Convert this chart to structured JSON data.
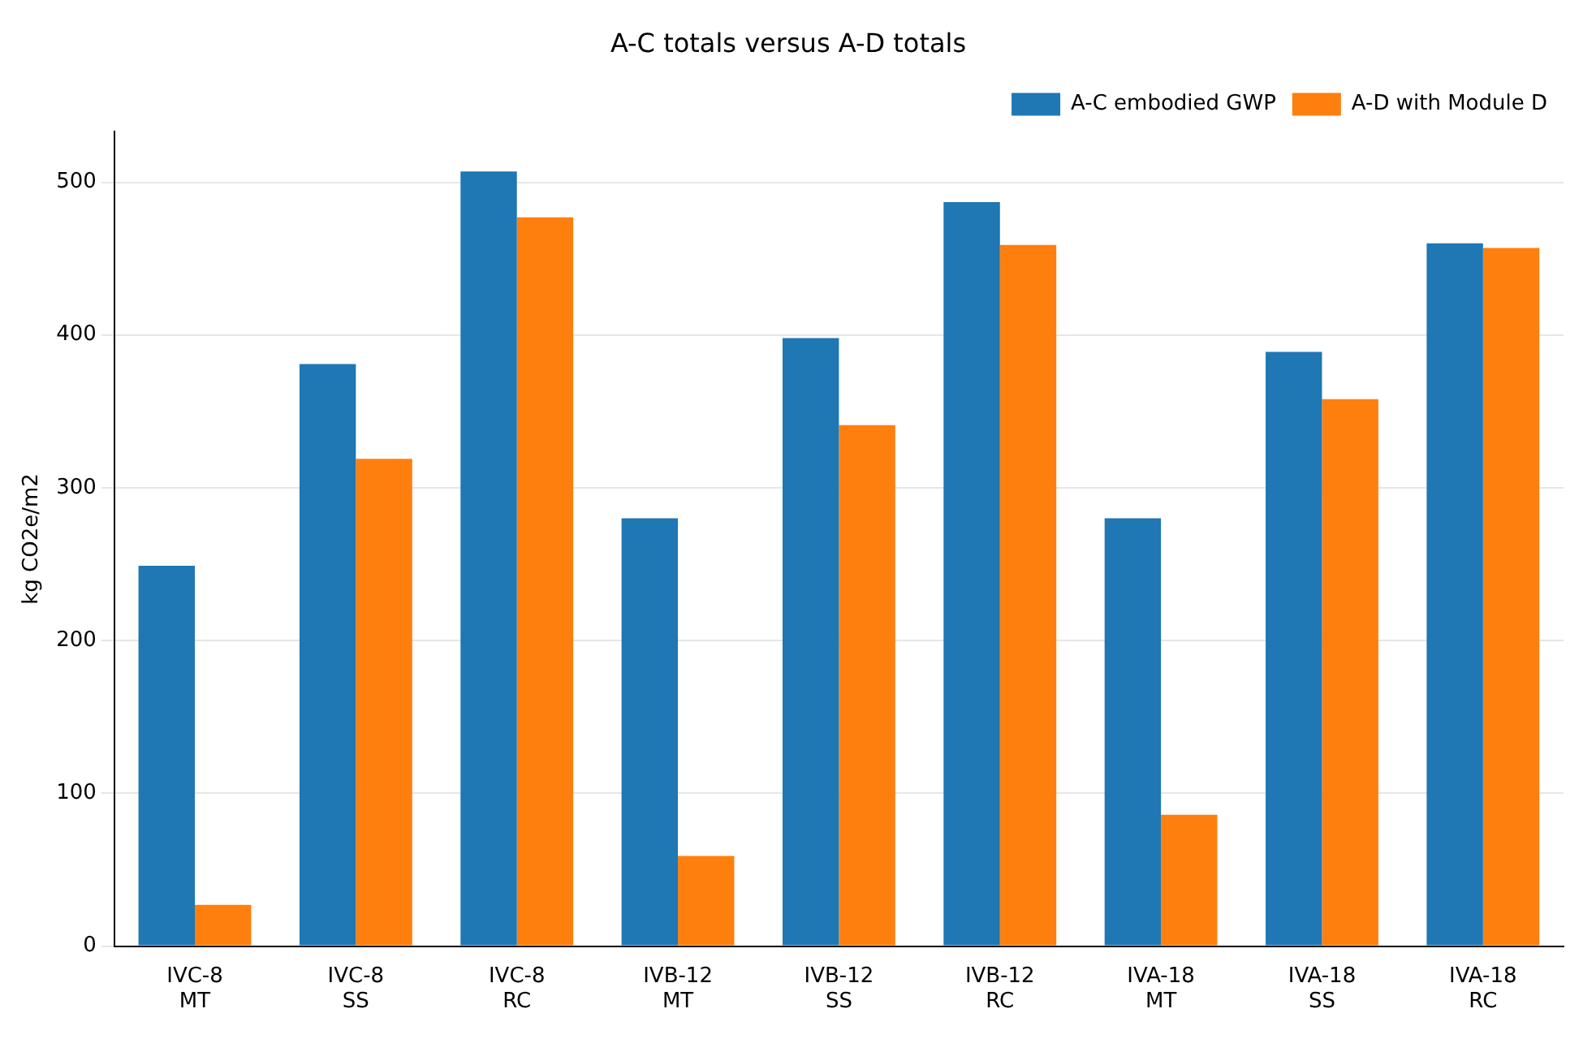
{
  "chart_data": {
    "type": "bar",
    "title": "A-C totals versus A-D totals",
    "ylabel": "kg CO2e/m2",
    "categories": [
      "IVC-8\nMT",
      "IVC-8\nSS",
      "IVC-8\nRC",
      "IVB-12\nMT",
      "IVB-12\nSS",
      "IVB-12\nRC",
      "IVA-18\nMT",
      "IVA-18\nSS",
      "IVA-18\nRC"
    ],
    "series": [
      {
        "name": "A-C embodied GWP",
        "color": "#1f77b4",
        "values": [
          249,
          381,
          507,
          280,
          398,
          487,
          280,
          389,
          460
        ]
      },
      {
        "name": "A-D with Module D",
        "color": "#ff7f0e",
        "values": [
          27,
          319,
          477,
          59,
          341,
          459,
          86,
          358,
          457
        ]
      }
    ],
    "ylim": [
      0,
      533
    ],
    "yticks": [
      0,
      100,
      200,
      300,
      400,
      500
    ],
    "grid": "y",
    "legend": "top right"
  }
}
